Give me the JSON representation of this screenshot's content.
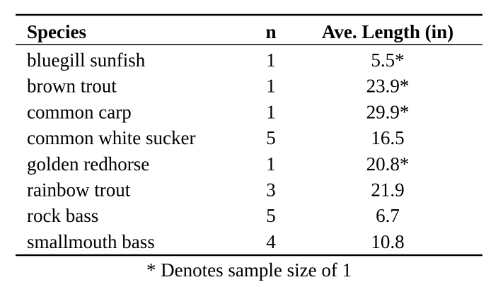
{
  "table": {
    "header": [
      "Species",
      "n",
      "Ave. Length (in)"
    ],
    "rows": [
      [
        "bluegill sunfish",
        1,
        "5.5*"
      ],
      [
        "brown trout",
        1,
        "23.9*"
      ],
      [
        "common carp",
        1,
        "29.9*"
      ],
      [
        "common white sucker",
        5,
        "16.5"
      ],
      [
        "golden redhorse",
        1,
        "20.8*"
      ],
      [
        "rainbow trout",
        3,
        "21.9"
      ],
      [
        "rock bass",
        5,
        "6.7"
      ],
      [
        "smallmouth bass",
        4,
        "10.8"
      ]
    ],
    "footnote": "* Denotes sample size of 1"
  }
}
